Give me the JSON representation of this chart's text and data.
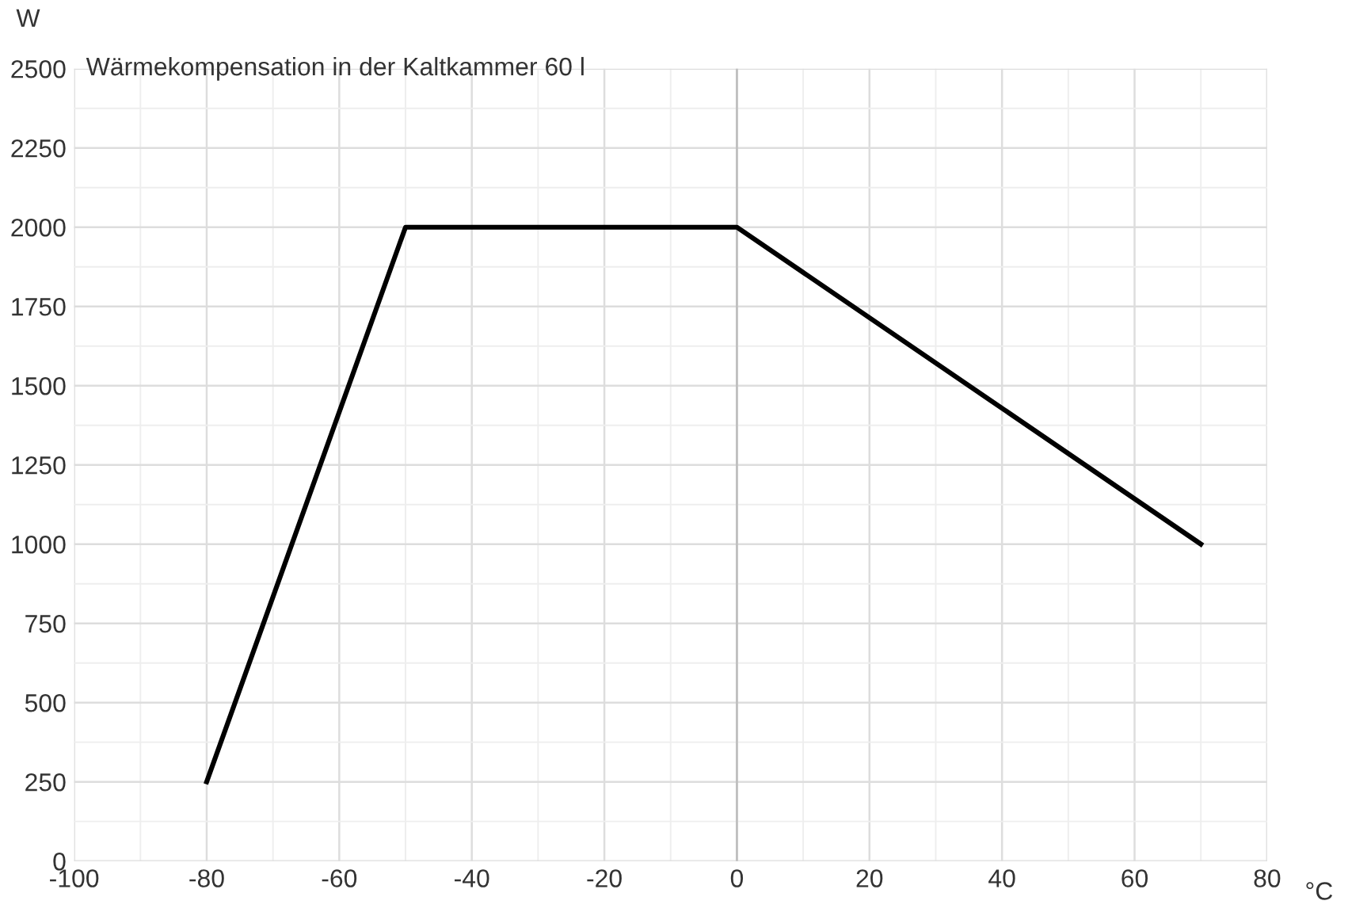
{
  "chart_data": {
    "type": "line",
    "title": "Wärmekompensation in der Kaltkammer 60 l",
    "xlabel": "°C",
    "ylabel": "W",
    "x": [
      -80,
      -50,
      0,
      70
    ],
    "series": [
      {
        "color": "#000000",
        "values": [
          250,
          2000,
          2000,
          1000
        ]
      }
    ],
    "xlim": [
      -100,
      80
    ],
    "xticks": [
      -100,
      -80,
      -60,
      -40,
      -20,
      0,
      20,
      40,
      60,
      80
    ],
    "ylim": [
      0,
      2500
    ],
    "yticks": [
      0,
      250,
      500,
      750,
      1000,
      1250,
      1500,
      1750,
      2000,
      2250,
      2500
    ],
    "ref_lines": [
      {
        "axis": "x",
        "value": 0,
        "color": "#bfbfbf"
      }
    ],
    "grid": true,
    "marker": "none",
    "line_style": "solid"
  }
}
